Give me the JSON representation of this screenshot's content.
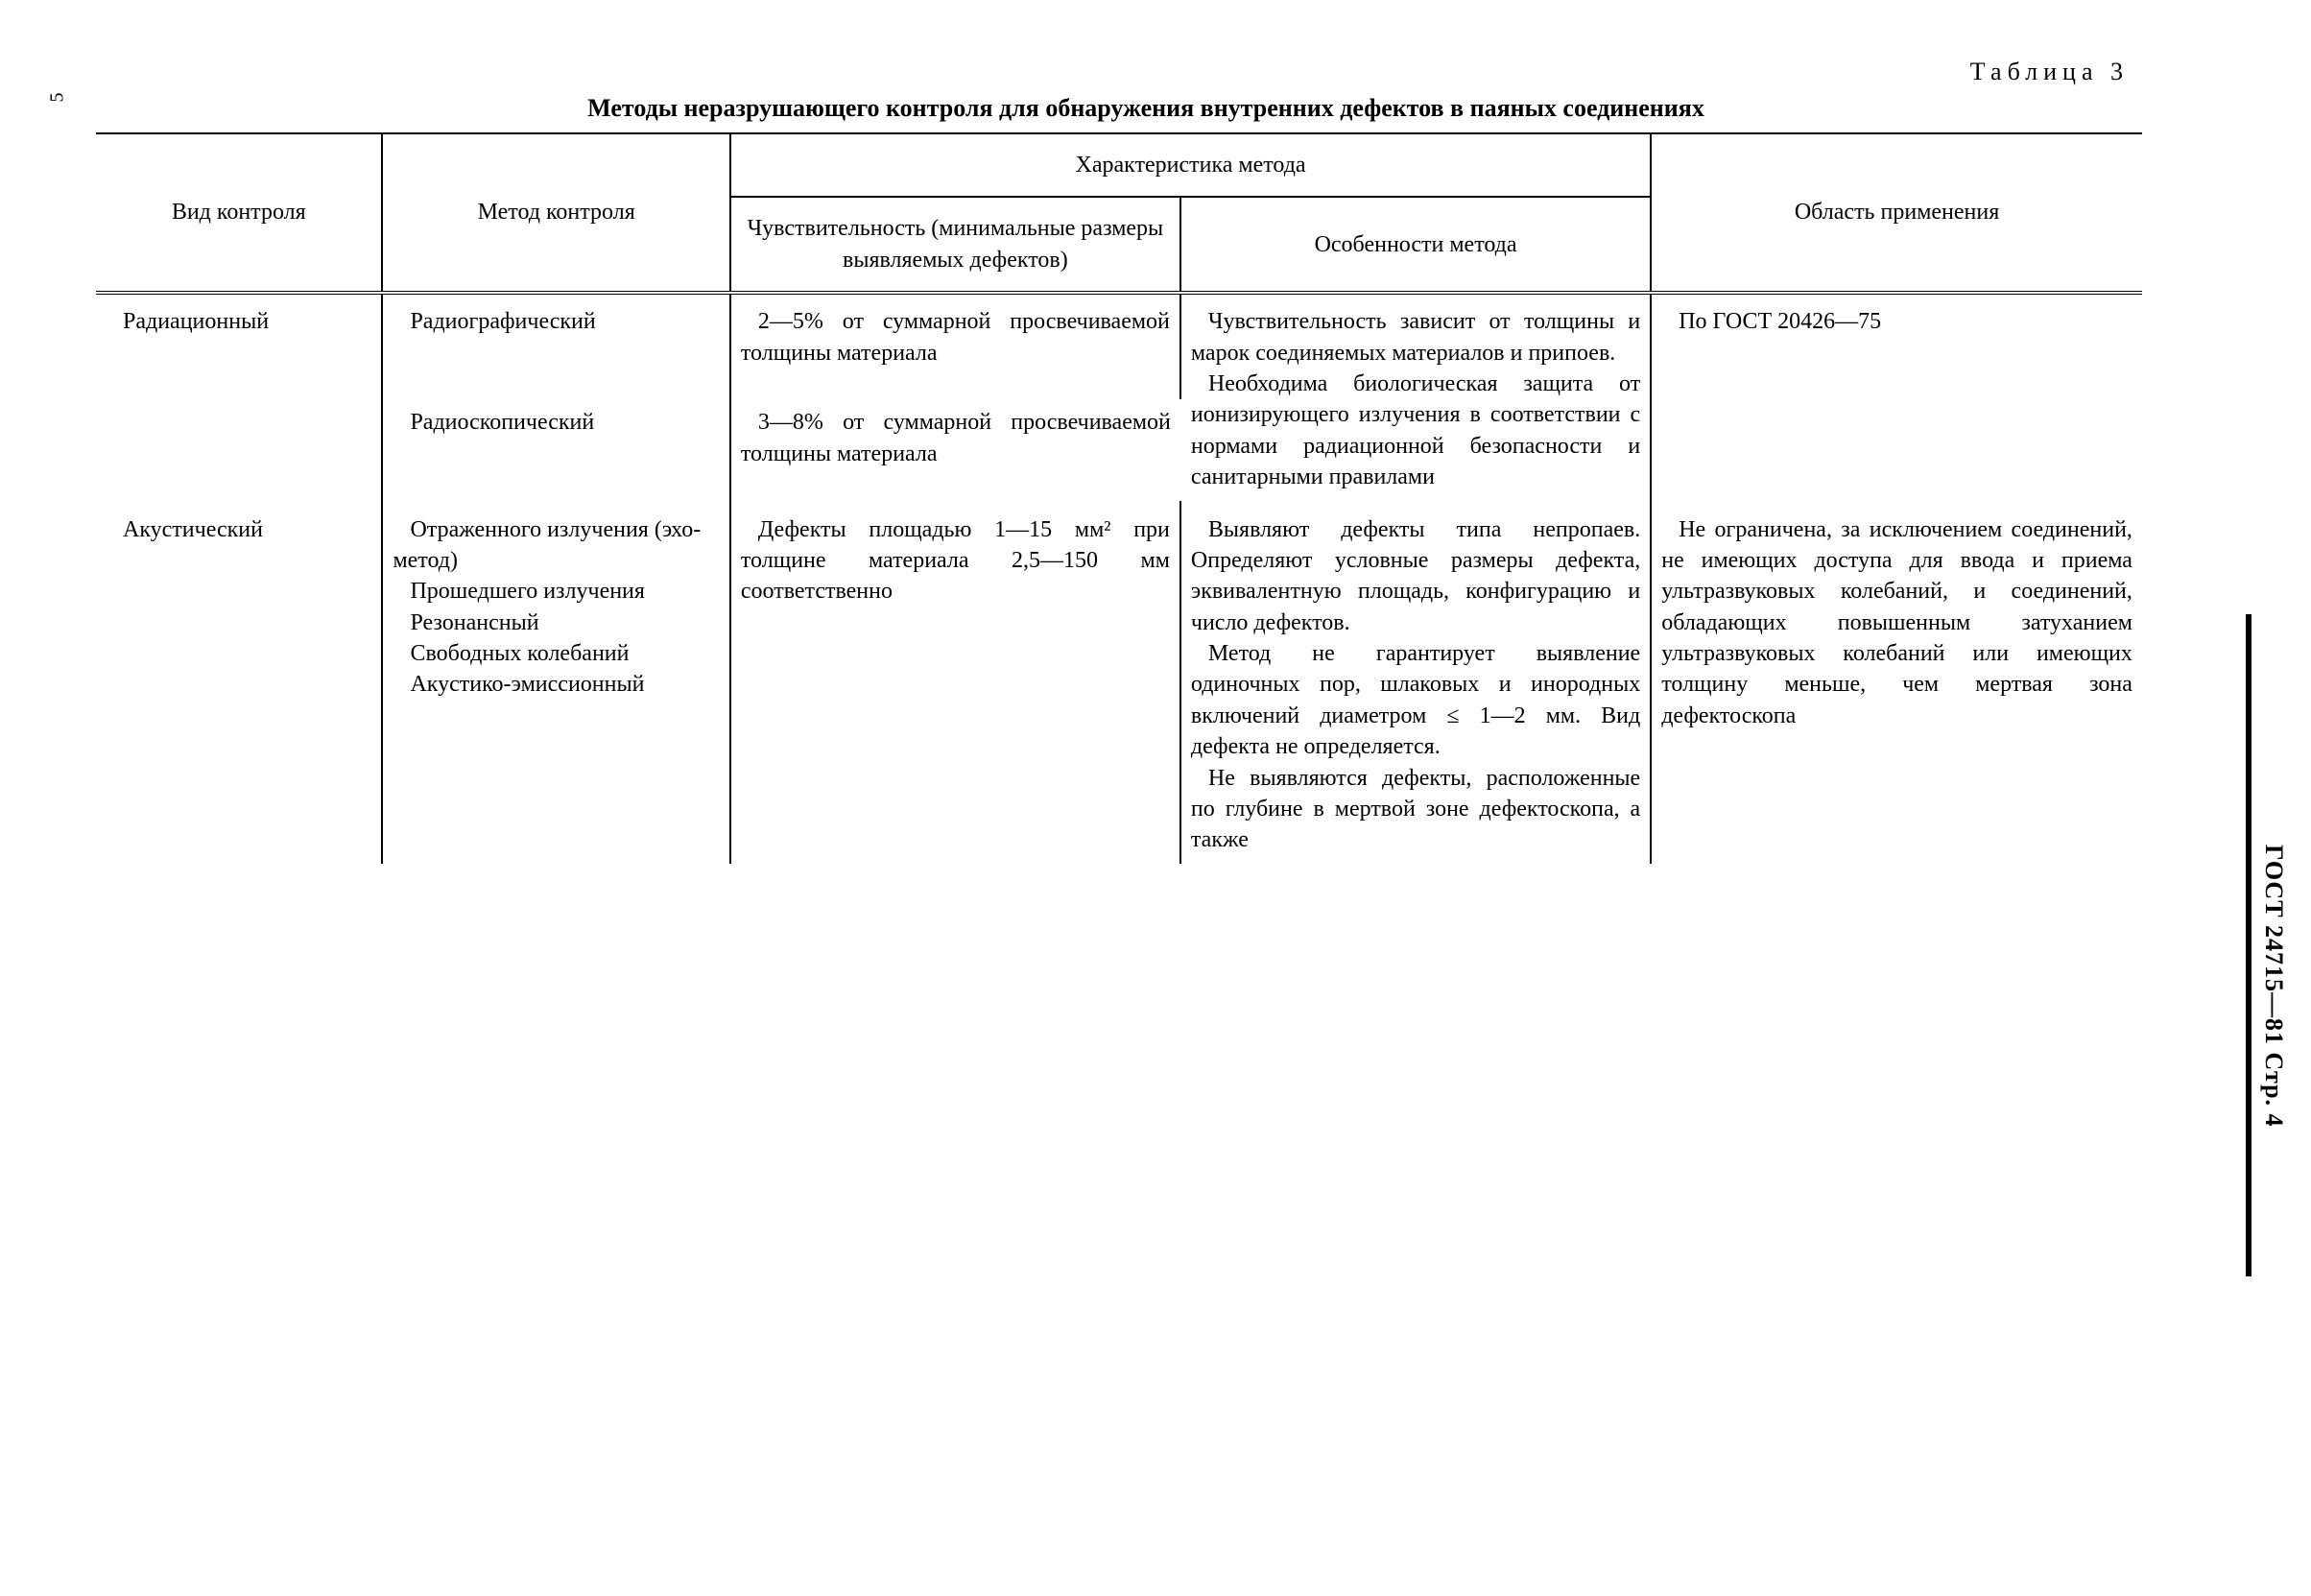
{
  "page_number_left": "5",
  "table_label": "Таблица 3",
  "caption": "Методы неразрушающего контроля для обнаружения внутренних дефектов в паяных соединениях",
  "side_label": "ГОСТ 24715—81 Стр. 4",
  "headers": {
    "col1": "Вид контроля",
    "col2": "Метод контроля",
    "span": "Характеристика метода",
    "col3": "Чувствительность (минимальные размеры выявляемых дефектов)",
    "col4": "Особенности метода",
    "col5": "Область применения"
  },
  "rows": {
    "r1": {
      "vid": "Радиационный",
      "method": "Радиографический",
      "sens": "2—5% от суммарной просвечиваемой толщины материала",
      "feat": "Чувствительность зависит от толщины и марок соединяемых материалов и припоев.",
      "feat2": "Необходима биологическая защита от ионизирующего излучения в соответствии с нормами радиационной безопасности и санитарными правилами",
      "scope": "По ГОСТ 20426—75"
    },
    "r2": {
      "method": "Радиоскопический",
      "sens": "3—8% от суммарной просвечиваемой толщины материала"
    },
    "r3": {
      "vid": "Акустический",
      "method_lines": [
        "Отраженного излучения (эхо-метод)",
        "Прошедшего излучения",
        "Резонансный",
        "Свободных колебаний",
        "Акустико-эмиссионный"
      ],
      "sens": "Дефекты площадью 1—15 мм² при толщине материала 2,5—150 мм соответственно",
      "feat_p1": "Выявляют дефекты типа непропаев. Определяют условные размеры дефекта, эквивалентную площадь, конфигурацию и число дефектов.",
      "feat_p2": "Метод не гарантирует выявление одиночных пор, шлаковых и инородных включений диаметром ≤ 1—2 мм. Вид дефекта не определяется.",
      "feat_p3": "Не выявляются дефекты, расположенные по глубине в мертвой зоне дефектоскопа, а также",
      "scope": "Не ограничена, за исключением соединений, не имеющих доступа для ввода и приема ультразвуковых колебаний, и соединений, обладающих повышенным затуханием ультразвуковых колебаний или имеющих толщину меньше, чем мертвая зона дефектоскопа"
    }
  }
}
